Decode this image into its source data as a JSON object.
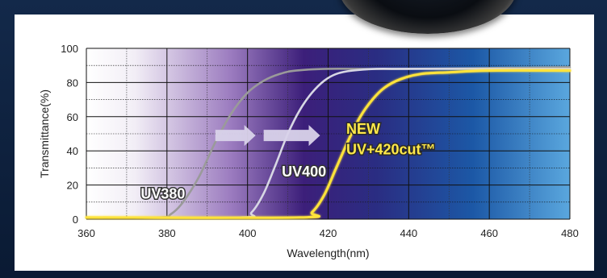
{
  "chart_data": {
    "type": "line",
    "xlabel": "Wavelength(nm)",
    "ylabel": "Transmittance(%)",
    "xlim": [
      360,
      480
    ],
    "ylim": [
      0,
      100
    ],
    "x_ticks": [
      360,
      380,
      400,
      420,
      440,
      460,
      480
    ],
    "y_ticks": [
      0,
      20,
      40,
      60,
      80,
      100
    ],
    "grid": true,
    "background": "gradient white-to-violet-to-blue",
    "series": [
      {
        "name": "UV380",
        "color": "#9a9a9a",
        "x": [
          360,
          378,
          381,
          384,
          388,
          392,
          396,
          400,
          404,
          408,
          412,
          420,
          440,
          480
        ],
        "y": [
          1,
          1,
          3,
          10,
          25,
          45,
          62,
          74,
          81,
          85,
          87,
          88,
          88,
          89
        ]
      },
      {
        "name": "UV400",
        "color": "#d7d7e4",
        "x": [
          360,
          398,
          401,
          404,
          407,
          410,
          413,
          416,
          419,
          422,
          426,
          432,
          440,
          480
        ],
        "y": [
          1,
          1,
          4,
          15,
          32,
          50,
          64,
          74,
          81,
          85,
          87,
          88,
          88,
          88
        ]
      },
      {
        "name": "NEW UV+420cut™",
        "color": "#ffe33a",
        "x": [
          360,
          413,
          416,
          419,
          422,
          425,
          428,
          431,
          434,
          438,
          443,
          450,
          460,
          480
        ],
        "y": [
          1,
          1,
          4,
          14,
          30,
          46,
          60,
          70,
          77,
          82,
          85,
          86,
          87,
          87
        ]
      }
    ],
    "annotations": [
      {
        "text": "UV380",
        "series": "UV380"
      },
      {
        "text": "UV400",
        "series": "UV400"
      },
      {
        "text": "NEW",
        "series": "NEW UV+420cut™"
      },
      {
        "text": "UV+420cut™",
        "series": "NEW UV+420cut™"
      }
    ]
  }
}
